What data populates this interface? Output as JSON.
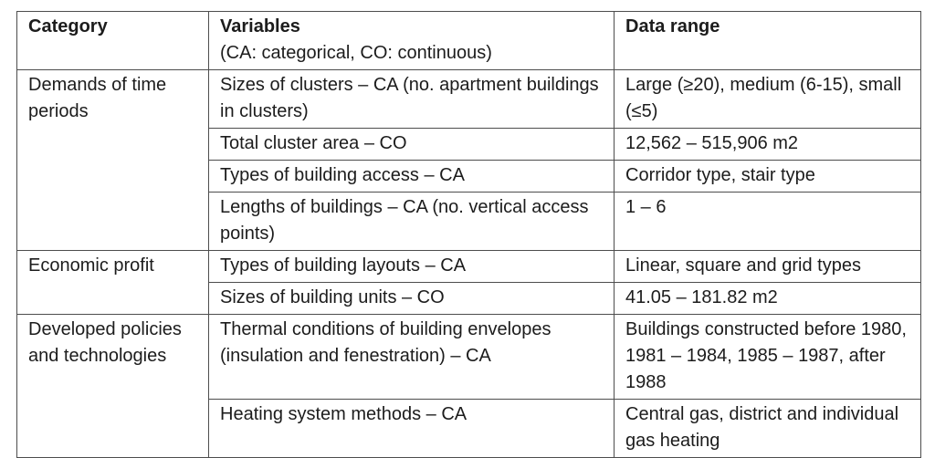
{
  "table": {
    "headers": {
      "category": "Category",
      "variables": "Variables",
      "variables_note": "(CA: categorical, CO: continuous)",
      "data_range": "Data range"
    },
    "groups": [
      {
        "category": "Demands of time periods",
        "rows": [
          {
            "variable": "Sizes of clusters – CA (no. apartment buildings in clusters)",
            "range": "Large (≥20), medium (6-15), small (≤5)"
          },
          {
            "variable": "Total cluster area – CO",
            "range": "12,562 – 515,906 m2"
          },
          {
            "variable": "Types of building access – CA",
            "range": "Corridor type, stair type"
          },
          {
            "variable": "Lengths of buildings – CA (no. vertical access points)",
            "range": "1 – 6"
          }
        ]
      },
      {
        "category": "Economic profit",
        "rows": [
          {
            "variable": "Types of building layouts – CA",
            "range": "Linear, square and grid types"
          },
          {
            "variable": "Sizes of building units – CO",
            "range": "41.05 – 181.82 m2"
          }
        ]
      },
      {
        "category": "Developed policies and technologies",
        "rows": [
          {
            "variable": "Thermal conditions of building envelopes (insulation and fenestration) – CA",
            "range": "Buildings constructed before 1980, 1981 – 1984, 1985 – 1987, after 1988"
          },
          {
            "variable": "Heating system methods – CA",
            "range": "Central gas, district and individual gas heating"
          }
        ]
      }
    ]
  }
}
